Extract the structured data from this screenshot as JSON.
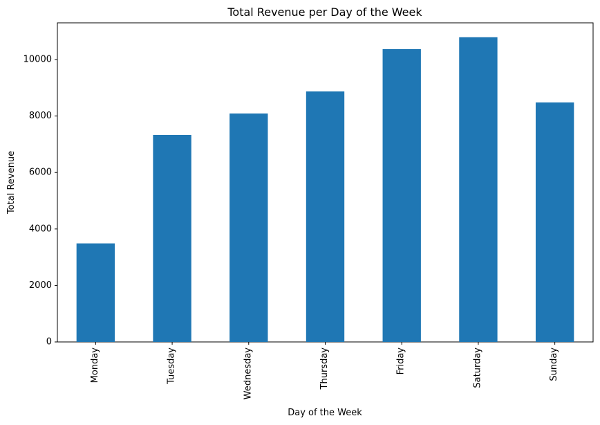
{
  "chart_data": {
    "type": "bar",
    "title": "Total Revenue per Day of the Week",
    "xlabel": "Day of the Week",
    "ylabel": "Total Revenue",
    "categories": [
      "Monday",
      "Tuesday",
      "Wednesday",
      "Thursday",
      "Friday",
      "Saturday",
      "Sunday"
    ],
    "values": [
      3490,
      7330,
      8090,
      8870,
      10370,
      10790,
      8480
    ],
    "ylim": [
      0,
      11300
    ],
    "yticks": [
      0,
      2000,
      4000,
      6000,
      8000,
      10000
    ],
    "ytick_labels": [
      "0",
      "2000",
      "4000",
      "6000",
      "8000",
      "10000"
    ],
    "bar_color": "#1f77b4",
    "grid": false,
    "legend": false
  }
}
